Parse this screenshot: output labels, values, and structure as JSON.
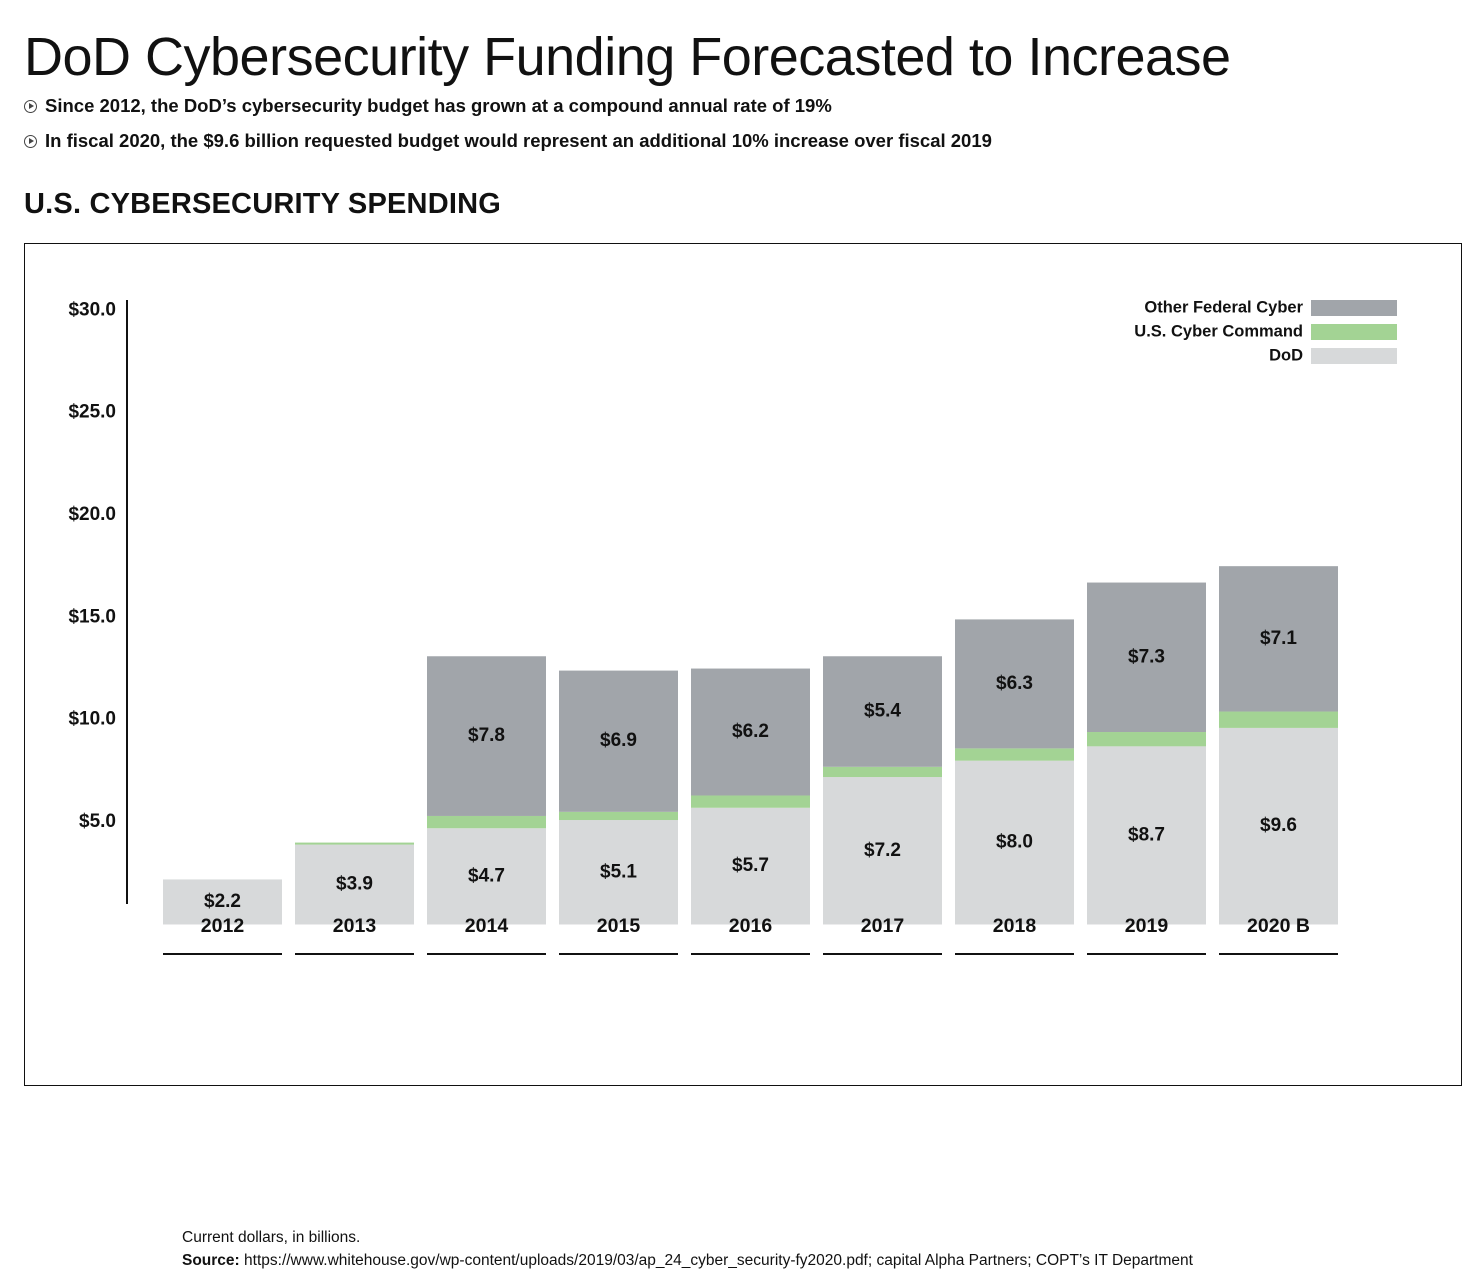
{
  "header": {
    "title": "DoD Cybersecurity Funding Forecasted to Increase",
    "bullets": [
      "Since 2012, the DoD’s cybersecurity budget has grown at a compound annual rate of 19%",
      "In fiscal 2020, the $9.6 billion requested budget would represent an additional 10% increase over fiscal 2019"
    ],
    "section_title": "U.S. CYBERSECURITY SPENDING"
  },
  "footer": {
    "note": "Current dollars, in billions.",
    "source_label": "Source:",
    "source_text": "https://www.whitehouse.gov/wp-content/uploads/2019/03/ap_24_cyber_security-fy2020.pdf; capital Alpha Partners; COPT’s IT Department"
  },
  "colors": {
    "dod": "#d7d9da",
    "cyber_command": "#a3d394",
    "other_federal": "#a1a5aa",
    "text": "#111111"
  },
  "chart_data": {
    "type": "bar",
    "stacked": true,
    "categories": [
      "2012",
      "2013",
      "2014",
      "2015",
      "2016",
      "2017",
      "2018",
      "2019",
      "2020 B"
    ],
    "series": [
      {
        "name": "DoD",
        "color": "#d7d9da",
        "values": [
          2.2,
          3.9,
          4.7,
          5.1,
          5.7,
          7.2,
          8.0,
          8.7,
          9.6
        ],
        "labels": [
          "$2.2",
          "$3.9",
          "$4.7",
          "$5.1",
          "$5.7",
          "$7.2",
          "$8.0",
          "$8.7",
          "$9.6"
        ]
      },
      {
        "name": "U.S. Cyber Command",
        "color": "#a3d394",
        "values": [
          0.0,
          0.1,
          0.6,
          0.4,
          0.6,
          0.5,
          0.6,
          0.7,
          0.8
        ],
        "labels": [
          "",
          "",
          "",
          "",
          "",
          "",
          "",
          "",
          ""
        ]
      },
      {
        "name": "Other Federal Cyber",
        "color": "#a1a5aa",
        "values": [
          0,
          0,
          7.8,
          6.9,
          6.2,
          5.4,
          6.3,
          7.3,
          7.1
        ],
        "labels": [
          "",
          "",
          "$7.8",
          "$6.9",
          "$6.2",
          "$5.4",
          "$6.3",
          "$7.3",
          "$7.1"
        ]
      }
    ],
    "y_ticks": [
      5,
      10,
      15,
      20,
      25,
      30
    ],
    "y_tick_labels": [
      "$5.0",
      "$10.0",
      "$15.0",
      "$20.0",
      "$25.0",
      "$30.0"
    ],
    "ylim": [
      1,
      30.5
    ],
    "legend_position": "top-right",
    "legend_order": [
      "Other Federal Cyber",
      "U.S. Cyber Command",
      "DoD"
    ],
    "grid": false
  }
}
